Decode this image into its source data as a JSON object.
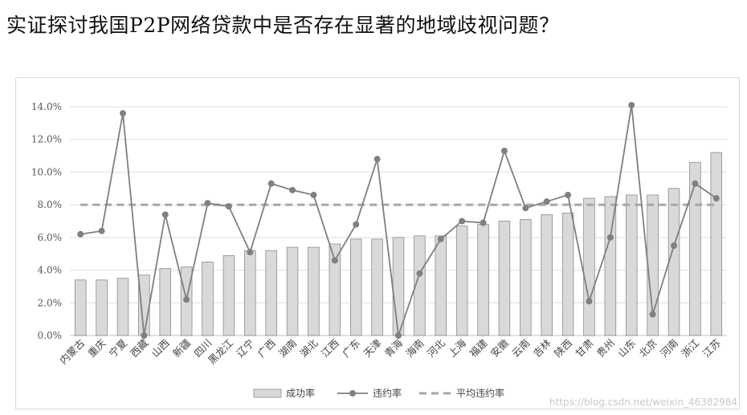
{
  "heading": "实证探讨我国P2P网络贷款中是否存在显著的地域歧视问题？",
  "watermark": "https://blog.csdn.net/weixin_46382984",
  "chart_data": {
    "type": "bar",
    "categories": [
      "内蒙古",
      "重庆",
      "宁夏",
      "西藏",
      "山西",
      "新疆",
      "四川",
      "黑龙江",
      "辽宁",
      "广西",
      "湖南",
      "湖北",
      "江西",
      "广东",
      "天津",
      "青海",
      "海南",
      "河北",
      "上海",
      "福建",
      "安徽",
      "云南",
      "吉林",
      "陕西",
      "甘肃",
      "贵州",
      "山东",
      "北京",
      "河南",
      "浙江",
      "江苏"
    ],
    "series": [
      {
        "name": "成功率",
        "type": "bar",
        "color": "#d9d9d9",
        "values": [
          3.4,
          3.4,
          3.5,
          3.7,
          4.1,
          4.2,
          4.5,
          4.9,
          5.2,
          5.2,
          5.4,
          5.4,
          5.6,
          5.9,
          5.9,
          6.0,
          6.1,
          6.1,
          6.7,
          6.8,
          7.0,
          7.1,
          7.4,
          7.5,
          8.4,
          8.5,
          8.6,
          8.6,
          9.0,
          10.6,
          11.2
        ]
      },
      {
        "name": "违约率",
        "type": "line",
        "color": "#7f7f7f",
        "values": [
          6.2,
          6.4,
          13.6,
          0.0,
          7.4,
          2.2,
          8.1,
          7.9,
          5.1,
          9.3,
          8.9,
          8.6,
          4.6,
          6.8,
          10.8,
          0.0,
          3.8,
          5.9,
          7.0,
          6.9,
          11.3,
          7.8,
          8.2,
          8.6,
          2.1,
          6.0,
          14.1,
          1.3,
          5.5,
          9.3,
          8.4
        ]
      },
      {
        "name": "平均违约率",
        "type": "line-dashed",
        "color": "#a6a6a6",
        "values": [
          8.0,
          8.0,
          8.0,
          8.0,
          8.0,
          8.0,
          8.0,
          8.0,
          8.0,
          8.0,
          8.0,
          8.0,
          8.0,
          8.0,
          8.0,
          8.0,
          8.0,
          8.0,
          8.0,
          8.0,
          8.0,
          8.0,
          8.0,
          8.0,
          8.0,
          8.0,
          8.0,
          8.0,
          8.0,
          8.0,
          8.0
        ]
      }
    ],
    "y_ticks": [
      "0.0%",
      "2.0%",
      "4.0%",
      "6.0%",
      "8.0%",
      "10.0%",
      "12.0%",
      "14.0%"
    ],
    "ylim": [
      0,
      14
    ],
    "grid": "horizontal",
    "legend_position": "bottom"
  }
}
